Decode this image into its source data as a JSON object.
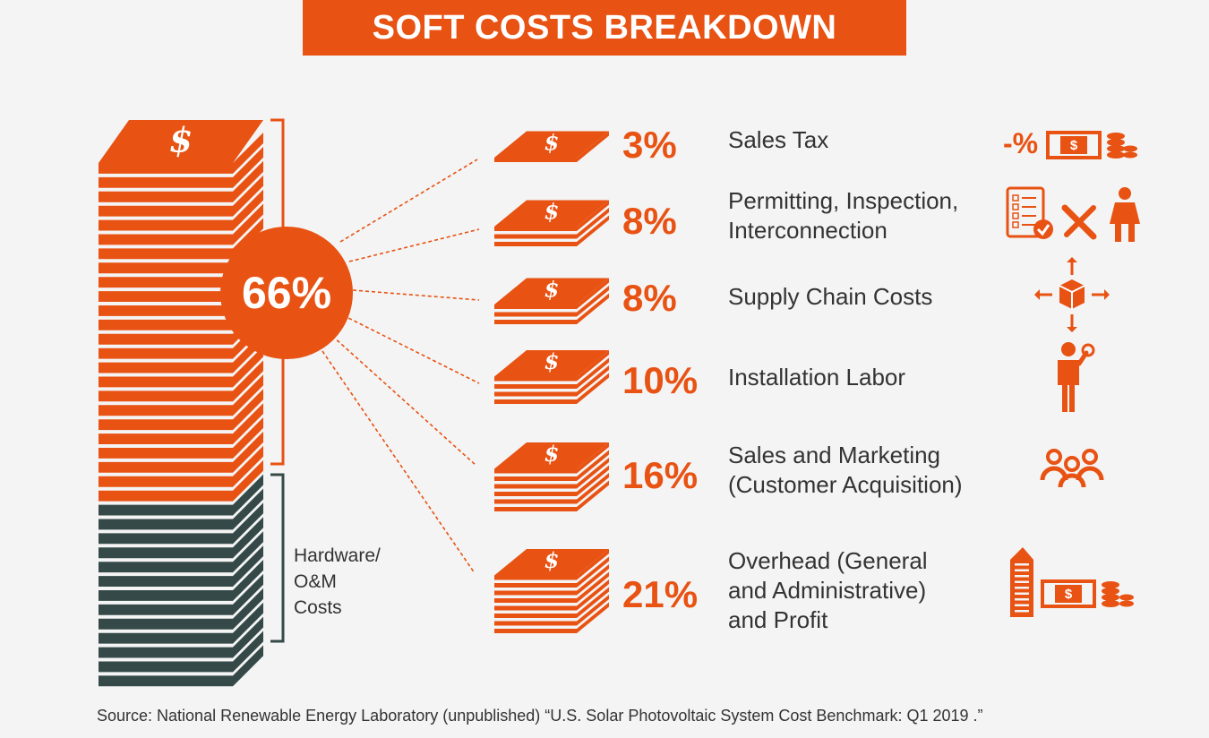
{
  "title": "SOFT COSTS BREAKDOWN",
  "colors": {
    "accent": "#e85213",
    "hardware": "#354a48",
    "text": "#333333",
    "background": "#f4f4f4"
  },
  "chart_data": {
    "type": "table",
    "total_soft_cost_label": "66%",
    "total_soft_cost_value": 66,
    "hardware_label": "Hardware/\nO&M\nCosts",
    "categories": [
      {
        "label": "Sales Tax",
        "value": 3,
        "value_label": "3%",
        "icon": "tax-money-coins-icon"
      },
      {
        "label": "Permitting, Inspection,\nInterconnection",
        "value": 8,
        "value_label": "8%",
        "icon": "checklist-tools-inspector-icon"
      },
      {
        "label": "Supply Chain Costs",
        "value": 8,
        "value_label": "8%",
        "icon": "box-arrows-icon"
      },
      {
        "label": "Installation Labor",
        "value": 10,
        "value_label": "10%",
        "icon": "worker-wrench-icon"
      },
      {
        "label": "Sales and Marketing\n(Customer Acquisition)",
        "value": 16,
        "value_label": "16%",
        "icon": "people-group-icon"
      },
      {
        "label": "Overhead (General\nand Administrative)\nand Profit",
        "value": 21,
        "value_label": "21%",
        "icon": "building-money-icon"
      }
    ]
  },
  "source": "Source: National Renewable Energy Laboratory (unpublished) “U.S. Solar Photovoltaic System Cost Benchmark: Q1 2019 .”"
}
